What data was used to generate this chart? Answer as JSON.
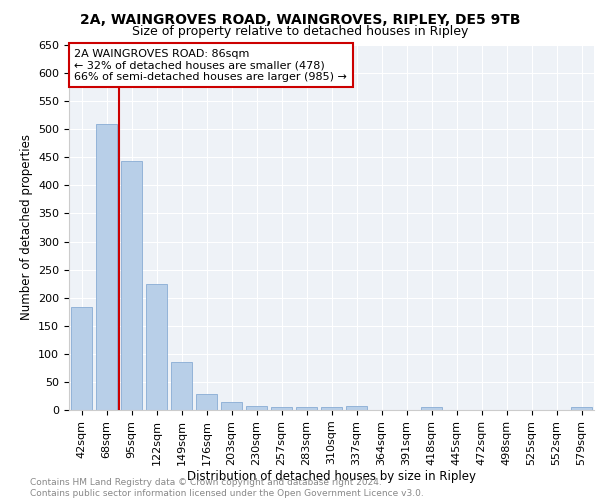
{
  "title1": "2A, WAINGROVES ROAD, WAINGROVES, RIPLEY, DE5 9TB",
  "title2": "Size of property relative to detached houses in Ripley",
  "xlabel": "Distribution of detached houses by size in Ripley",
  "ylabel": "Number of detached properties",
  "categories": [
    "42sqm",
    "68sqm",
    "95sqm",
    "122sqm",
    "149sqm",
    "176sqm",
    "203sqm",
    "230sqm",
    "257sqm",
    "283sqm",
    "310sqm",
    "337sqm",
    "364sqm",
    "391sqm",
    "418sqm",
    "445sqm",
    "472sqm",
    "498sqm",
    "525sqm",
    "552sqm",
    "579sqm"
  ],
  "values": [
    183,
    510,
    443,
    225,
    85,
    28,
    15,
    8,
    6,
    5,
    5,
    8,
    0,
    0,
    5,
    0,
    0,
    0,
    0,
    0,
    5
  ],
  "bar_color": "#b8cfe8",
  "bar_edge_color": "#89acd4",
  "annotation_box_text": "2A WAINGROVES ROAD: 86sqm\n← 32% of detached houses are smaller (478)\n66% of semi-detached houses are larger (985) →",
  "annotation_box_color": "white",
  "annotation_box_edge_color": "#cc0000",
  "vline_color": "#cc0000",
  "vline_x": 2,
  "ylim": [
    0,
    650
  ],
  "yticks": [
    0,
    50,
    100,
    150,
    200,
    250,
    300,
    350,
    400,
    450,
    500,
    550,
    600,
    650
  ],
  "footnote": "Contains HM Land Registry data © Crown copyright and database right 2024.\nContains public sector information licensed under the Open Government Licence v3.0.",
  "plot_bg_color": "#eef2f7",
  "title1_fontsize": 10,
  "title2_fontsize": 9,
  "xlabel_fontsize": 8.5,
  "ylabel_fontsize": 8.5,
  "footnote_fontsize": 6.5,
  "annotation_fontsize": 8,
  "tick_fontsize": 8
}
